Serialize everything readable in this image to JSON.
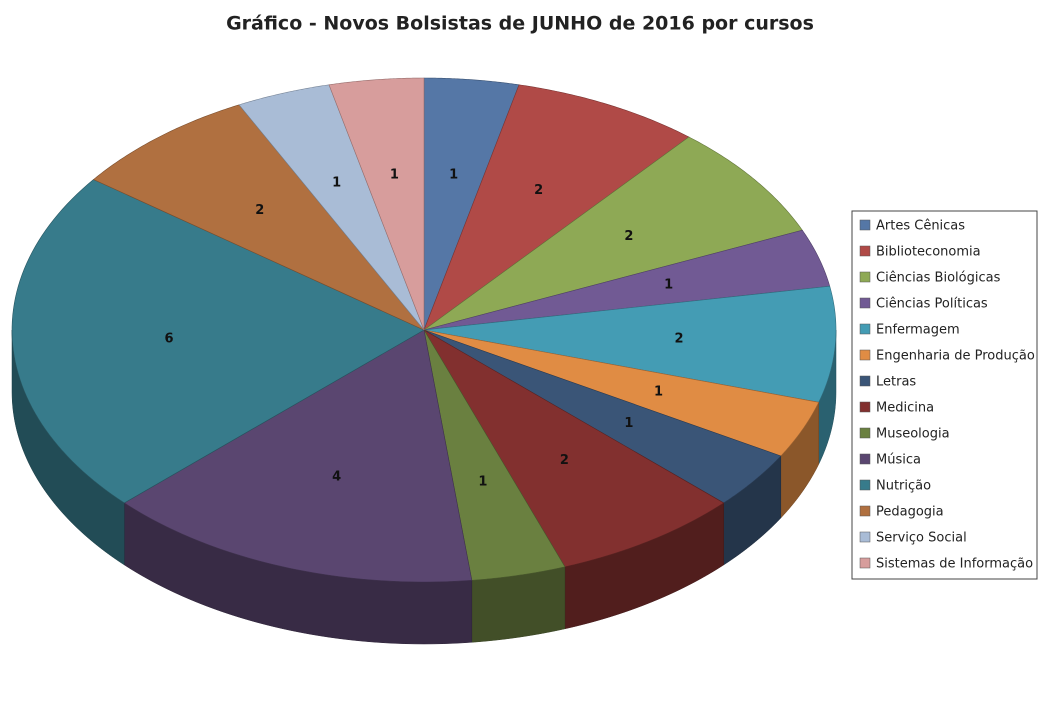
{
  "chart_data": {
    "type": "pie",
    "title": "Gráfico - Novos Bolsistas de JUNHO de 2016 por cursos",
    "categories": [
      "Artes Cênicas",
      "Biblioteconomia",
      "Ciências Biológicas",
      "Ciências Políticas",
      "Enfermagem",
      "Engenharia de Produção",
      "Letras",
      "Medicina",
      "Museologia",
      "Música",
      "Nutrição",
      "Pedagogia",
      "Serviço Social",
      "Sistemas de Informação"
    ],
    "values": [
      1,
      2,
      2,
      1,
      2,
      1,
      1,
      2,
      1,
      4,
      6,
      2,
      1,
      1
    ],
    "colors": [
      "#5577a6",
      "#b04a47",
      "#8ea955",
      "#715a94",
      "#449cb4",
      "#e08c44",
      "#3a5577",
      "#82302f",
      "#6a8040",
      "#5a4670",
      "#377b8b",
      "#b07040",
      "#a9bcd6",
      "#d79d9c"
    ],
    "legend": "right"
  }
}
